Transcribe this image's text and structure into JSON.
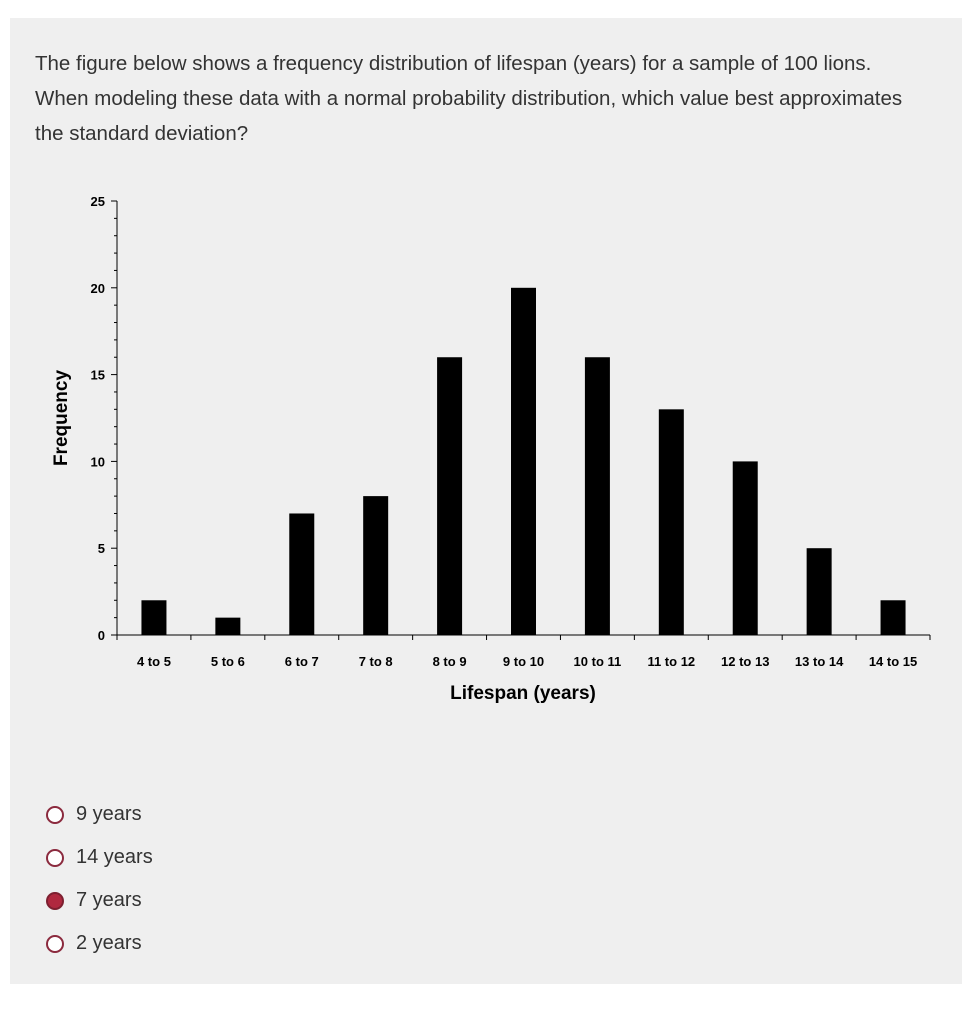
{
  "question": {
    "text": "The figure below shows a frequency distribution of lifespan (years) for a sample of 100 lions. When modeling these data with a normal probability distribution, which value best approximates the standard deviation?"
  },
  "chart_data": {
    "type": "bar",
    "categories": [
      "4 to 5",
      "5 to 6",
      "6 to 7",
      "7 to 8",
      "8 to 9",
      "9 to 10",
      "10 to 11",
      "11 to 12",
      "12 to 13",
      "13 to 14",
      "14 to 15"
    ],
    "values": [
      2,
      1,
      7,
      8,
      16,
      20,
      16,
      13,
      10,
      5,
      2
    ],
    "xlabel": "Lifespan (years)",
    "ylabel": "Frequency",
    "ylim": [
      0,
      25
    ],
    "yticks": [
      0,
      5,
      10,
      15,
      20,
      25
    ],
    "grid": false,
    "bar_color": "#000000"
  },
  "options": [
    {
      "label": "9 years",
      "selected": false
    },
    {
      "label": "14 years",
      "selected": false
    },
    {
      "label": "7 years",
      "selected": true
    },
    {
      "label": "2 years",
      "selected": false
    }
  ],
  "colors": {
    "panel_background": "#efefef",
    "text": "#333333",
    "radio_selected": "#b0283f",
    "radio_border": "#8b2a3e"
  }
}
